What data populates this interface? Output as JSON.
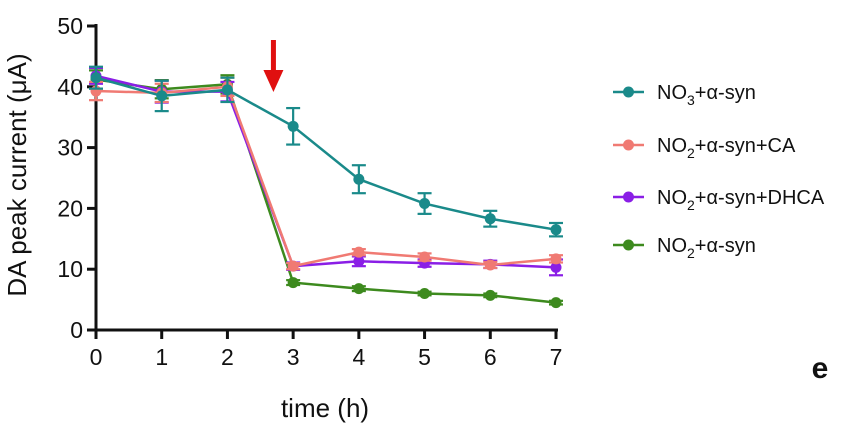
{
  "chart_data": {
    "type": "line",
    "title": "",
    "xlabel": "time (h)",
    "ylabel": "DA peak current (μA)",
    "x": [
      0,
      1,
      2,
      3,
      4,
      5,
      6,
      7
    ],
    "xlim": [
      0,
      7
    ],
    "ylim": [
      0,
      50
    ],
    "yticks": [
      0,
      10,
      20,
      30,
      40,
      50
    ],
    "grid": false,
    "legend_position": "right",
    "annotation_arrow_x": 2.7,
    "panel_letter": "e",
    "series": [
      {
        "name": "NO3+α-syn",
        "legend": {
          "base": "NO",
          "sub": "3",
          "rest": "+α-syn"
        },
        "color": "#1a8a8a",
        "values": [
          41.5,
          38.5,
          39.5,
          33.5,
          24.8,
          20.8,
          18.3,
          16.5
        ],
        "errors": [
          1.8,
          2.5,
          2.0,
          3.0,
          2.3,
          1.7,
          1.3,
          1.1
        ]
      },
      {
        "name": "NO2+α-syn+CA",
        "legend": {
          "base": "NO",
          "sub": "2",
          "rest": "+α-syn+CA"
        },
        "color": "#f07a73",
        "values": [
          39.3,
          39.0,
          40.0,
          10.5,
          12.8,
          12.0,
          10.7,
          11.7
        ],
        "errors": [
          1.5,
          1.5,
          1.5,
          0.5,
          0.5,
          0.6,
          0.5,
          0.6
        ]
      },
      {
        "name": "NO2+α-syn+DHCA",
        "legend": {
          "base": "NO",
          "sub": "2",
          "rest": "+α-syn+DHCA"
        },
        "color": "#8a1ee6",
        "values": [
          41.8,
          39.2,
          39.2,
          10.5,
          11.3,
          11.0,
          10.8,
          10.3
        ],
        "errors": [
          1.3,
          1.8,
          1.6,
          0.6,
          0.8,
          0.6,
          0.6,
          1.3
        ]
      },
      {
        "name": "NO2+α-syn",
        "legend": {
          "base": "NO",
          "sub": "2",
          "rest": "+α-syn"
        },
        "color": "#3d8a1e",
        "values": [
          41.2,
          39.6,
          40.4,
          7.8,
          6.8,
          6.0,
          5.7,
          4.5
        ],
        "errors": [
          1.5,
          1.5,
          1.5,
          0.4,
          0.4,
          0.3,
          0.3,
          0.3
        ]
      }
    ]
  }
}
